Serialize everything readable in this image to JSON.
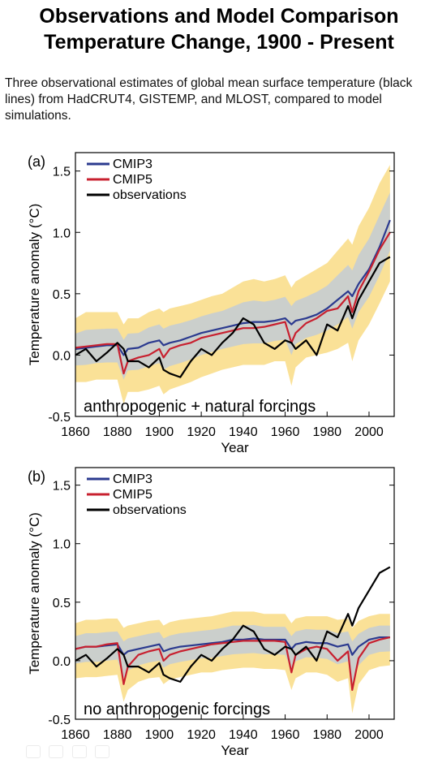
{
  "page": {
    "title_line1": "Observations and Model Comparison",
    "title_line2": "Temperature Change, 1900 - Present",
    "description": "Three observational estimates of global mean surface temperature (black lines) from HadCRUT4, GISTEMP, and MLOST, compared to model simulations."
  },
  "colors": {
    "cmip3": "#2b3a8f",
    "cmip5": "#c8202f",
    "observations": "#000000",
    "cmip3_band": "#b7c8e3",
    "cmip5_spread": "#f5c842"
  },
  "chart_data": [
    {
      "type": "line",
      "panel_label": "(a)",
      "annotation": "anthropogenic + natural forcings",
      "xlabel": "Year",
      "ylabel": "Temperature anomaly (°C)",
      "xlim": [
        1860,
        2012
      ],
      "ylim": [
        -0.5,
        1.65
      ],
      "xticks": [
        1860,
        1880,
        1900,
        1920,
        1940,
        1960,
        1980,
        2000
      ],
      "yticks": [
        -0.5,
        0.0,
        0.5,
        1.0,
        1.5
      ],
      "ytick_labels": [
        "-0.5",
        "0.0",
        "0.5",
        "1.0",
        "1.5"
      ],
      "legend": {
        "placement": "top-left",
        "entries": [
          "CMIP3",
          "CMIP5",
          "observations"
        ]
      },
      "x": [
        1860,
        1865,
        1870,
        1875,
        1880,
        1883,
        1885,
        1890,
        1895,
        1900,
        1902,
        1905,
        1910,
        1915,
        1920,
        1925,
        1930,
        1935,
        1940,
        1945,
        1950,
        1955,
        1960,
        1963,
        1965,
        1970,
        1975,
        1980,
        1985,
        1990,
        1992,
        1995,
        2000,
        2005,
        2010
      ],
      "series": [
        {
          "name": "CMIP3",
          "values": [
            0.05,
            0.06,
            0.07,
            0.08,
            0.08,
            0.0,
            0.05,
            0.06,
            0.1,
            0.12,
            0.08,
            0.1,
            0.12,
            0.15,
            0.18,
            0.2,
            0.22,
            0.24,
            0.26,
            0.27,
            0.27,
            0.28,
            0.3,
            0.25,
            0.28,
            0.3,
            0.33,
            0.38,
            0.45,
            0.52,
            0.48,
            0.58,
            0.7,
            0.88,
            1.1
          ]
        },
        {
          "name": "CMIP5",
          "values": [
            0.06,
            0.07,
            0.08,
            0.09,
            0.09,
            -0.15,
            -0.05,
            -0.02,
            0.0,
            0.05,
            -0.02,
            0.05,
            0.08,
            0.1,
            0.14,
            0.16,
            0.18,
            0.2,
            0.22,
            0.22,
            0.23,
            0.25,
            0.27,
            0.1,
            0.18,
            0.26,
            0.3,
            0.36,
            0.38,
            0.48,
            0.35,
            0.52,
            0.68,
            0.86,
            1.0
          ]
        },
        {
          "name": "observations",
          "values": [
            0.0,
            0.05,
            -0.05,
            0.02,
            0.1,
            0.05,
            -0.05,
            -0.05,
            -0.1,
            -0.02,
            -0.12,
            -0.15,
            -0.18,
            -0.05,
            0.05,
            0.0,
            0.1,
            0.18,
            0.3,
            0.25,
            0.1,
            0.05,
            0.12,
            0.1,
            0.05,
            0.12,
            0.0,
            0.25,
            0.2,
            0.4,
            0.3,
            0.45,
            0.6,
            0.75,
            0.8
          ]
        }
      ],
      "spread_high": [
        0.3,
        0.35,
        0.35,
        0.35,
        0.35,
        0.25,
        0.3,
        0.3,
        0.35,
        0.38,
        0.35,
        0.38,
        0.4,
        0.42,
        0.45,
        0.48,
        0.5,
        0.55,
        0.6,
        0.62,
        0.6,
        0.62,
        0.65,
        0.55,
        0.6,
        0.65,
        0.7,
        0.75,
        0.85,
        0.95,
        0.9,
        1.05,
        1.2,
        1.4,
        1.55
      ],
      "spread_low": [
        -0.22,
        -0.22,
        -0.2,
        -0.2,
        -0.2,
        -0.4,
        -0.3,
        -0.3,
        -0.28,
        -0.25,
        -0.32,
        -0.28,
        -0.25,
        -0.22,
        -0.18,
        -0.15,
        -0.12,
        -0.1,
        -0.08,
        -0.08,
        -0.08,
        -0.05,
        -0.05,
        -0.25,
        -0.1,
        -0.02,
        0.0,
        0.02,
        0.05,
        0.1,
        -0.05,
        0.12,
        0.25,
        0.42,
        0.6
      ]
    },
    {
      "type": "line",
      "panel_label": "(b)",
      "annotation": "no anthropogenic forcings",
      "xlabel": "Year",
      "ylabel": "Temperature anomaly (°C)",
      "xlim": [
        1860,
        2012
      ],
      "ylim": [
        -0.5,
        1.65
      ],
      "xticks": [
        1860,
        1880,
        1900,
        1920,
        1940,
        1960,
        1980,
        2000
      ],
      "yticks": [
        -0.5,
        0.0,
        0.5,
        1.0,
        1.5
      ],
      "ytick_labels": [
        "-0.5",
        "0.0",
        "0.5",
        "1.0",
        "1.5"
      ],
      "legend": {
        "placement": "top-left",
        "entries": [
          "CMIP3",
          "CMIP5",
          "observations"
        ]
      },
      "x": [
        1860,
        1865,
        1870,
        1875,
        1880,
        1883,
        1885,
        1890,
        1895,
        1900,
        1902,
        1905,
        1910,
        1915,
        1920,
        1925,
        1930,
        1935,
        1940,
        1945,
        1950,
        1955,
        1960,
        1963,
        1965,
        1970,
        1975,
        1980,
        1985,
        1990,
        1992,
        1995,
        2000,
        2005,
        2010
      ],
      "series": [
        {
          "name": "CMIP3",
          "values": [
            0.1,
            0.12,
            0.12,
            0.13,
            0.14,
            0.05,
            0.08,
            0.1,
            0.12,
            0.14,
            0.08,
            0.1,
            0.12,
            0.13,
            0.14,
            0.15,
            0.16,
            0.18,
            0.18,
            0.19,
            0.18,
            0.18,
            0.18,
            0.1,
            0.14,
            0.16,
            0.15,
            0.15,
            0.12,
            0.14,
            0.05,
            0.12,
            0.18,
            0.2,
            0.2
          ]
        },
        {
          "name": "CMIP5",
          "values": [
            0.1,
            0.12,
            0.12,
            0.14,
            0.15,
            -0.2,
            -0.05,
            0.05,
            0.08,
            0.1,
            0.0,
            0.05,
            0.08,
            0.1,
            0.12,
            0.14,
            0.15,
            0.16,
            0.17,
            0.17,
            0.17,
            0.17,
            0.16,
            -0.1,
            0.05,
            0.1,
            0.12,
            0.1,
            0.0,
            0.08,
            -0.25,
            0.02,
            0.15,
            0.18,
            0.2
          ]
        },
        {
          "name": "observations",
          "values": [
            0.0,
            0.05,
            -0.05,
            0.02,
            0.1,
            0.05,
            -0.05,
            -0.05,
            -0.1,
            -0.02,
            -0.12,
            -0.15,
            -0.18,
            -0.05,
            0.05,
            0.0,
            0.1,
            0.18,
            0.3,
            0.25,
            0.1,
            0.05,
            0.12,
            0.1,
            0.05,
            0.12,
            0.0,
            0.25,
            0.2,
            0.4,
            0.3,
            0.45,
            0.6,
            0.75,
            0.8
          ]
        }
      ],
      "spread_high": [
        0.32,
        0.35,
        0.35,
        0.36,
        0.36,
        0.28,
        0.3,
        0.32,
        0.34,
        0.35,
        0.3,
        0.33,
        0.35,
        0.36,
        0.37,
        0.38,
        0.4,
        0.42,
        0.42,
        0.42,
        0.4,
        0.4,
        0.4,
        0.32,
        0.36,
        0.38,
        0.38,
        0.38,
        0.35,
        0.36,
        0.28,
        0.34,
        0.38,
        0.4,
        0.4
      ],
      "spread_low": [
        -0.15,
        -0.14,
        -0.14,
        -0.13,
        -0.12,
        -0.35,
        -0.25,
        -0.18,
        -0.15,
        -0.14,
        -0.2,
        -0.16,
        -0.14,
        -0.12,
        -0.1,
        -0.1,
        -0.08,
        -0.07,
        -0.06,
        -0.06,
        -0.07,
        -0.07,
        -0.08,
        -0.25,
        -0.15,
        -0.1,
        -0.1,
        -0.12,
        -0.18,
        -0.15,
        -0.45,
        -0.2,
        -0.08,
        -0.05,
        -0.04
      ]
    }
  ]
}
